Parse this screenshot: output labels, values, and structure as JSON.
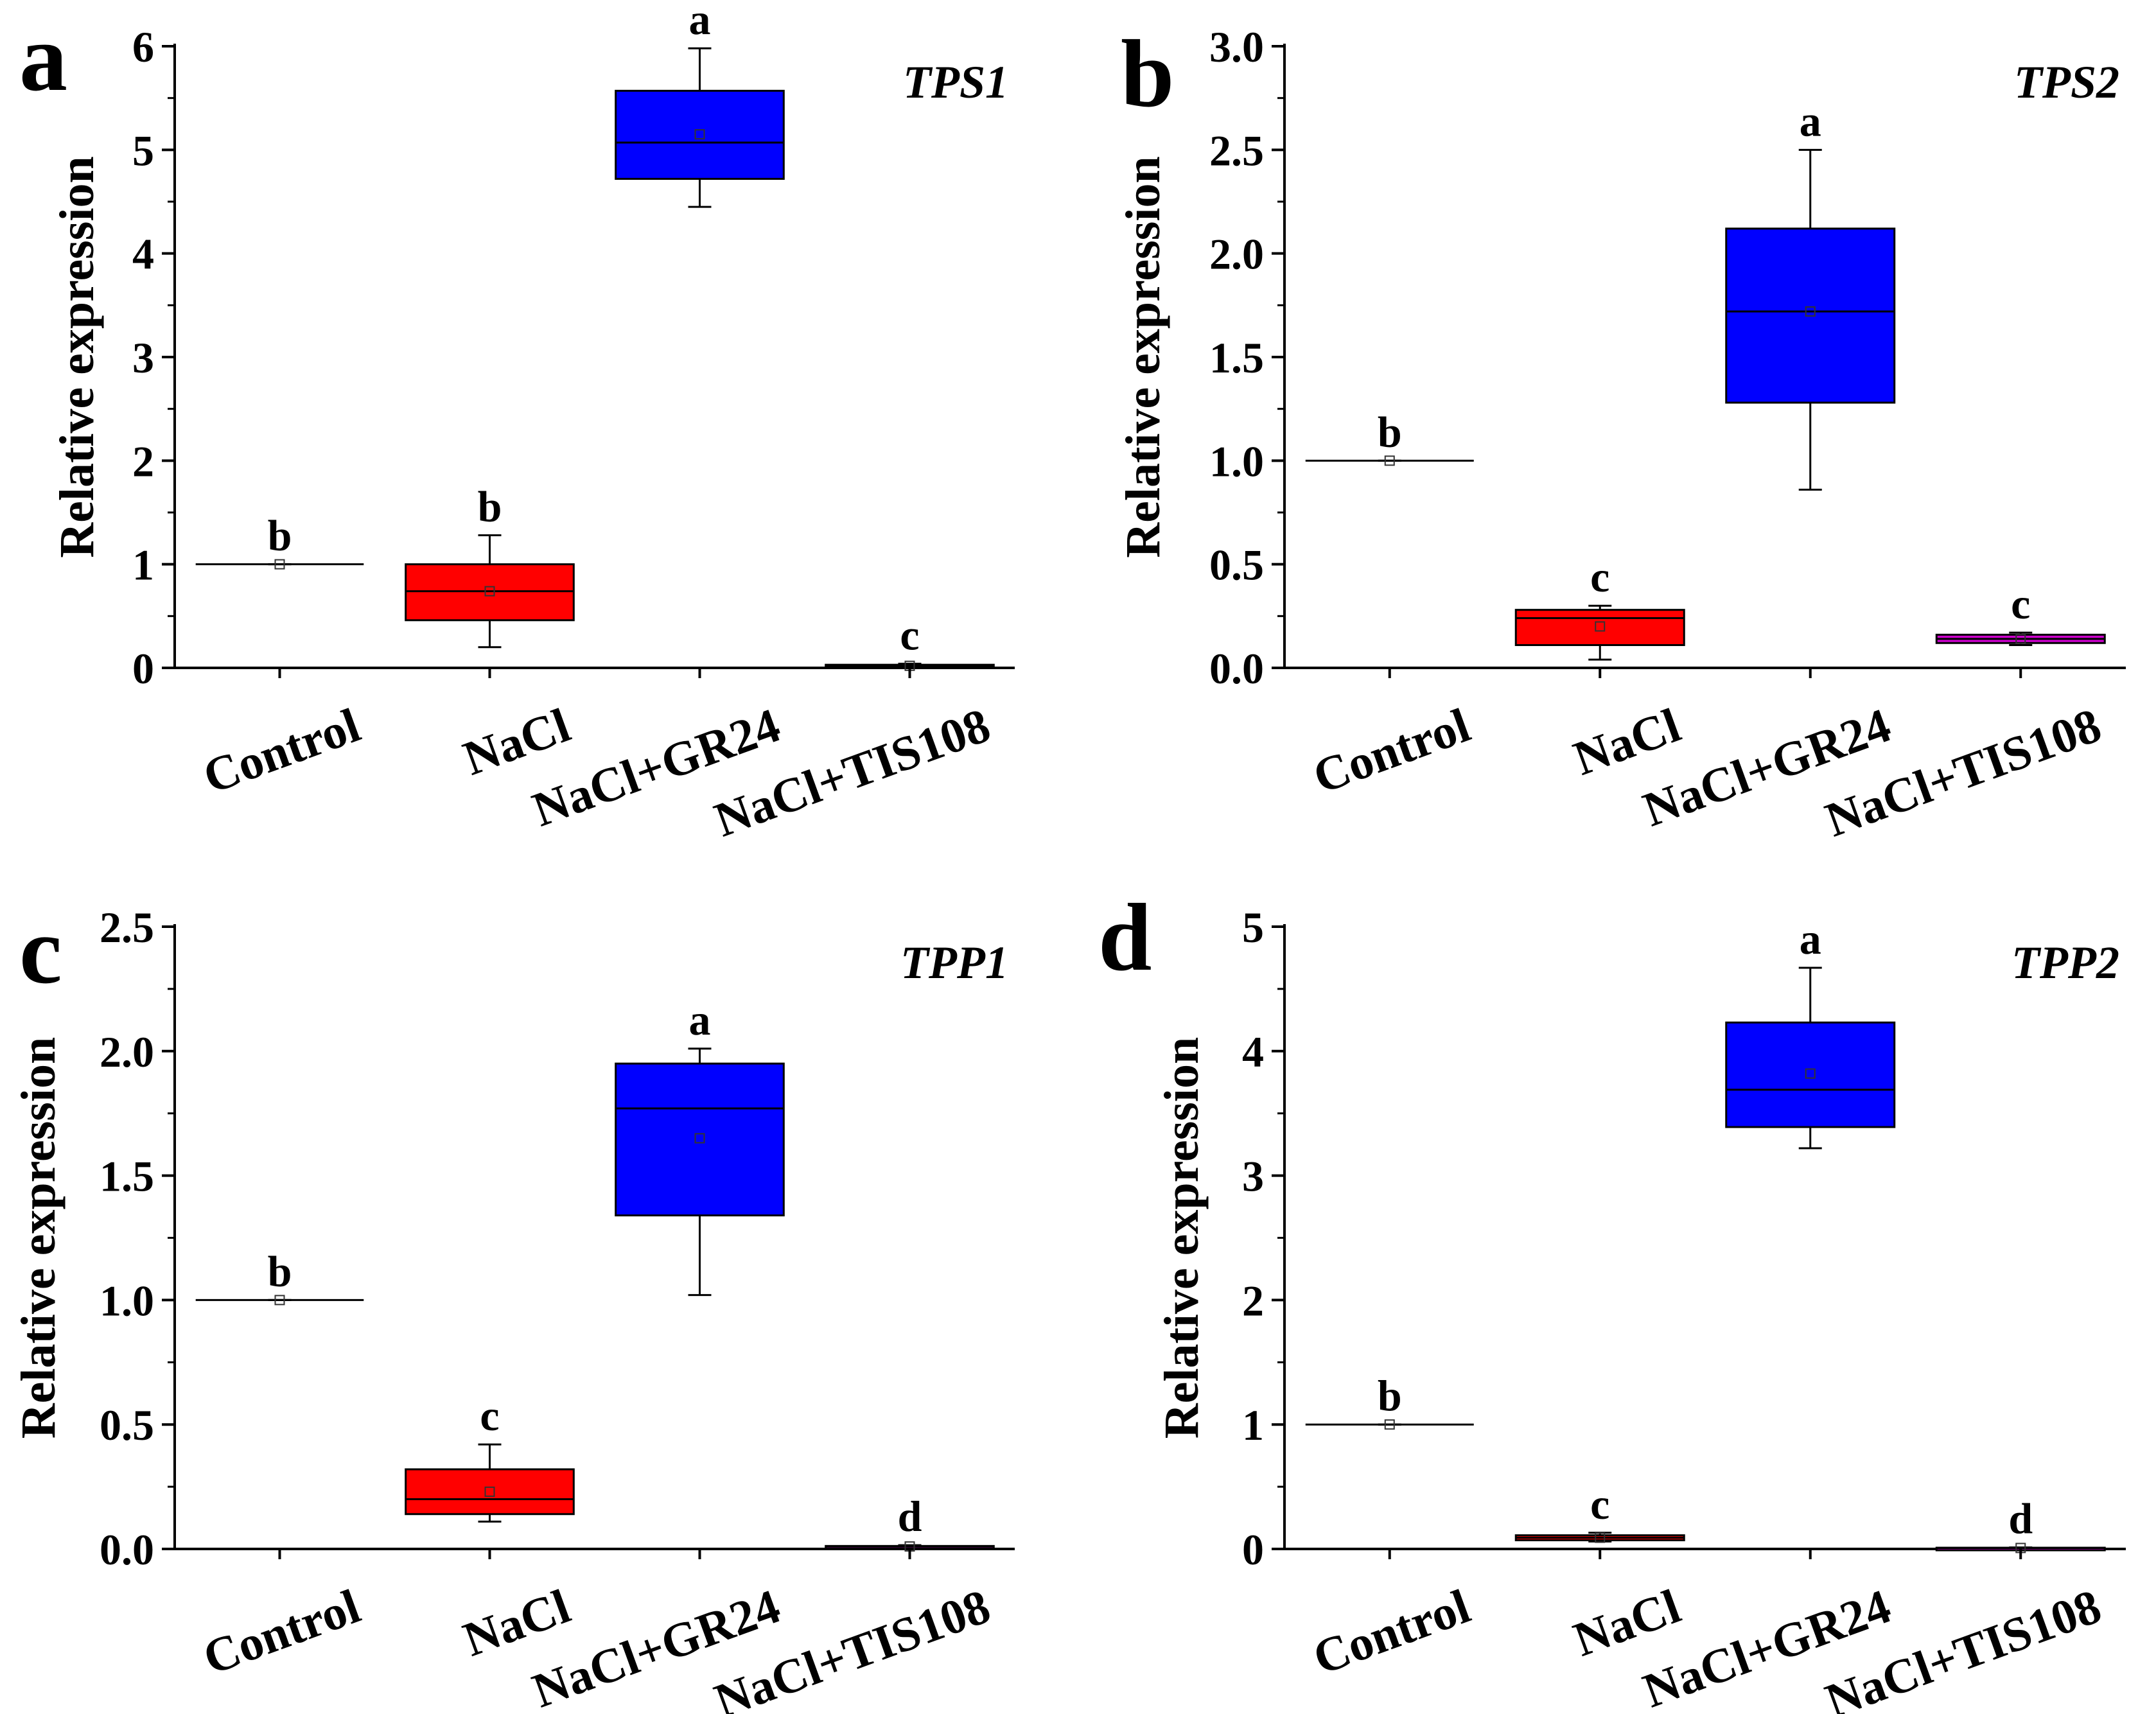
{
  "colors": {
    "Control": "#000000",
    "NaCl": "#ff0000",
    "NaCl+GR24": "#0000ff",
    "NaCl+TIS108": "#cc00cc"
  },
  "chart_data": [
    {
      "type": "box",
      "panel": "a",
      "gene": "TPS1",
      "ylabel": "Relative expression",
      "ylim": [
        0,
        6
      ],
      "yticks": [
        "0",
        "1",
        "2",
        "3",
        "4",
        "5",
        "6"
      ],
      "categories": [
        "Control",
        "NaCl",
        "NaCl+GR24",
        "NaCl+TIS108"
      ],
      "boxes": [
        {
          "whisker_low": 1.0,
          "q1": 1.0,
          "median": 1.0,
          "q3": 1.0,
          "whisker_high": 1.0,
          "mean": 1.0,
          "letter": "b"
        },
        {
          "whisker_low": 0.2,
          "q1": 0.46,
          "median": 0.74,
          "q3": 1.0,
          "whisker_high": 1.28,
          "mean": 0.74,
          "letter": "b"
        },
        {
          "whisker_low": 4.45,
          "q1": 4.72,
          "median": 5.07,
          "q3": 5.57,
          "whisker_high": 5.98,
          "mean": 5.15,
          "letter": "a"
        },
        {
          "whisker_low": 0.01,
          "q1": 0.01,
          "median": 0.02,
          "q3": 0.03,
          "whisker_high": 0.04,
          "mean": 0.02,
          "letter": "c"
        }
      ]
    },
    {
      "type": "box",
      "panel": "b",
      "gene": "TPS2",
      "ylabel": "Relative expression",
      "ylim": [
        0,
        3
      ],
      "yticks": [
        "0.0",
        "0.5",
        "1.0",
        "1.5",
        "2.0",
        "2.5",
        "3.0"
      ],
      "categories": [
        "Control",
        "NaCl",
        "NaCl+GR24",
        "NaCl+TIS108"
      ],
      "boxes": [
        {
          "whisker_low": 1.0,
          "q1": 1.0,
          "median": 1.0,
          "q3": 1.0,
          "whisker_high": 1.0,
          "mean": 1.0,
          "letter": "b"
        },
        {
          "whisker_low": 0.04,
          "q1": 0.11,
          "median": 0.24,
          "q3": 0.28,
          "whisker_high": 0.3,
          "mean": 0.2,
          "letter": "c"
        },
        {
          "whisker_low": 0.86,
          "q1": 1.28,
          "median": 1.72,
          "q3": 2.12,
          "whisker_high": 2.5,
          "mean": 1.72,
          "letter": "a"
        },
        {
          "whisker_low": 0.11,
          "q1": 0.12,
          "median": 0.14,
          "q3": 0.16,
          "whisker_high": 0.17,
          "mean": 0.14,
          "letter": "c"
        }
      ]
    },
    {
      "type": "box",
      "panel": "c",
      "gene": "TPP1",
      "ylabel": "Relative expression",
      "ylim": [
        0,
        2.5
      ],
      "yticks": [
        "0.0",
        "0.5",
        "1.0",
        "1.5",
        "2.0",
        "2.5"
      ],
      "categories": [
        "Control",
        "NaCl",
        "NaCl+GR24",
        "NaCl+TIS108"
      ],
      "boxes": [
        {
          "whisker_low": 1.0,
          "q1": 1.0,
          "median": 1.0,
          "q3": 1.0,
          "whisker_high": 1.0,
          "mean": 1.0,
          "letter": "b"
        },
        {
          "whisker_low": 0.11,
          "q1": 0.14,
          "median": 0.2,
          "q3": 0.32,
          "whisker_high": 0.42,
          "mean": 0.23,
          "letter": "c"
        },
        {
          "whisker_low": 1.02,
          "q1": 1.34,
          "median": 1.77,
          "q3": 1.95,
          "whisker_high": 2.01,
          "mean": 1.65,
          "letter": "a"
        },
        {
          "whisker_low": 0.005,
          "q1": 0.006,
          "median": 0.01,
          "q3": 0.012,
          "whisker_high": 0.015,
          "mean": 0.01,
          "letter": "d"
        }
      ]
    },
    {
      "type": "box",
      "panel": "d",
      "gene": "TPP2",
      "ylabel": "Relative expression",
      "ylim": [
        0,
        5
      ],
      "yticks": [
        "0",
        "1",
        "2",
        "3",
        "4",
        "5"
      ],
      "categories": [
        "Control",
        "NaCl",
        "NaCl+GR24",
        "NaCl+TIS108"
      ],
      "boxes": [
        {
          "whisker_low": 1.0,
          "q1": 1.0,
          "median": 1.0,
          "q3": 1.0,
          "whisker_high": 1.0,
          "mean": 1.0,
          "letter": "b"
        },
        {
          "whisker_low": 0.06,
          "q1": 0.07,
          "median": 0.09,
          "q3": 0.11,
          "whisker_high": 0.13,
          "mean": 0.09,
          "letter": "c"
        },
        {
          "whisker_low": 3.22,
          "q1": 3.39,
          "median": 3.69,
          "q3": 4.23,
          "whisker_high": 4.67,
          "mean": 3.82,
          "letter": "a"
        },
        {
          "whisker_low": 0.004,
          "q1": 0.005,
          "median": 0.008,
          "q3": 0.01,
          "whisker_high": 0.012,
          "mean": 0.008,
          "letter": "d"
        }
      ]
    }
  ]
}
